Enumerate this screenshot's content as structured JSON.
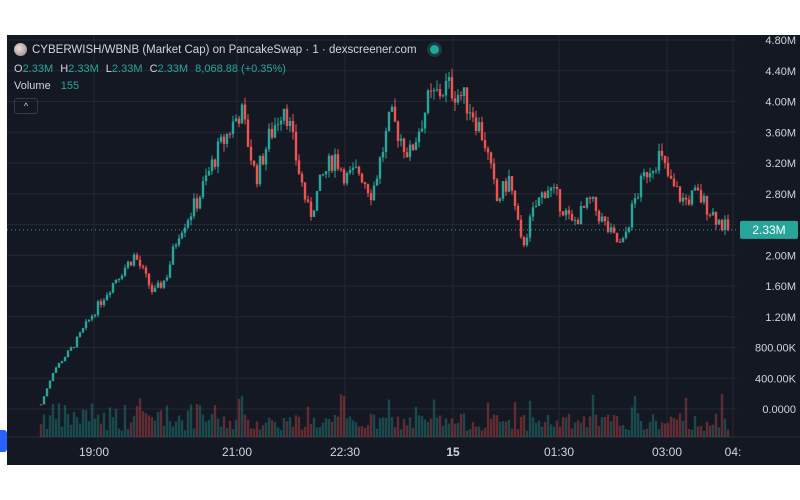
{
  "header": {
    "title": "CYBERWISH/WBNB (Market Cap) on PancakeSwap · 1 · dexscreener.com",
    "ohlc": [
      {
        "label": "O",
        "value": "2.33M"
      },
      {
        "label": "H",
        "value": "2.33M"
      },
      {
        "label": "L",
        "value": "2.33M"
      },
      {
        "label": "C",
        "value": "2.33M"
      }
    ],
    "change": "8,068.88 (+0.35%)",
    "volume_label": "Volume",
    "volume_value": "155",
    "collapse_glyph": "^"
  },
  "colors": {
    "background": "#141823",
    "up": "#26a69a",
    "down": "#ef5350",
    "price_line": "#26a69a",
    "grid": "#232734",
    "axis_text": "#d1d4dc"
  },
  "icons": [
    "token-logo-icon",
    "live-status-dot-icon",
    "collapse-chevron-icon",
    "settings-gear-icon"
  ],
  "chart_data": {
    "type": "candlestick",
    "y_axis_labels": [
      "4.80M",
      "4.40M",
      "4.00M",
      "3.60M",
      "3.20M",
      "2.80M",
      "2.40M",
      "2.00M",
      "1.60M",
      "1.20M",
      "800.00K",
      "400.00K",
      "0.0000"
    ],
    "y_axis_values": [
      4800000,
      4400000,
      4000000,
      3600000,
      3200000,
      2800000,
      2400000,
      2000000,
      1600000,
      1200000,
      800000,
      400000,
      0
    ],
    "x_axis_labels": [
      "19:00",
      "21:00",
      "22:30",
      "15",
      "01:30",
      "03:00",
      "04:"
    ],
    "x_axis_bold": "15",
    "current_price_label": "2.33M",
    "current_price": 2330000,
    "price_path": [
      [
        0,
        60000
      ],
      [
        10,
        500000
      ],
      [
        25,
        800000
      ],
      [
        40,
        1200000
      ],
      [
        60,
        1700000
      ],
      [
        75,
        2000000
      ],
      [
        90,
        1500000
      ],
      [
        100,
        1700000
      ],
      [
        110,
        2300000
      ],
      [
        125,
        2700000
      ],
      [
        140,
        3300000
      ],
      [
        160,
        3900000
      ],
      [
        172,
        3000000
      ],
      [
        182,
        3500000
      ],
      [
        195,
        4000000
      ],
      [
        205,
        3200000
      ],
      [
        215,
        2500000
      ],
      [
        225,
        3000000
      ],
      [
        235,
        3300000
      ],
      [
        245,
        3000000
      ],
      [
        255,
        3100000
      ],
      [
        265,
        2800000
      ],
      [
        280,
        3800000
      ],
      [
        295,
        3300000
      ],
      [
        310,
        4000000
      ],
      [
        325,
        4200000
      ],
      [
        335,
        4100000
      ],
      [
        345,
        3900000
      ],
      [
        355,
        3500000
      ],
      [
        365,
        2700000
      ],
      [
        375,
        3000000
      ],
      [
        385,
        2100000
      ],
      [
        395,
        2600000
      ],
      [
        405,
        2900000
      ],
      [
        415,
        2700000
      ],
      [
        425,
        2400000
      ],
      [
        440,
        2700000
      ],
      [
        455,
        2300000
      ],
      [
        465,
        2100000
      ],
      [
        475,
        2700000
      ],
      [
        485,
        3100000
      ],
      [
        495,
        3300000
      ],
      [
        505,
        2900000
      ],
      [
        515,
        2700000
      ],
      [
        525,
        2800000
      ],
      [
        535,
        2600000
      ],
      [
        545,
        2400000
      ],
      [
        550,
        2330000
      ]
    ]
  }
}
